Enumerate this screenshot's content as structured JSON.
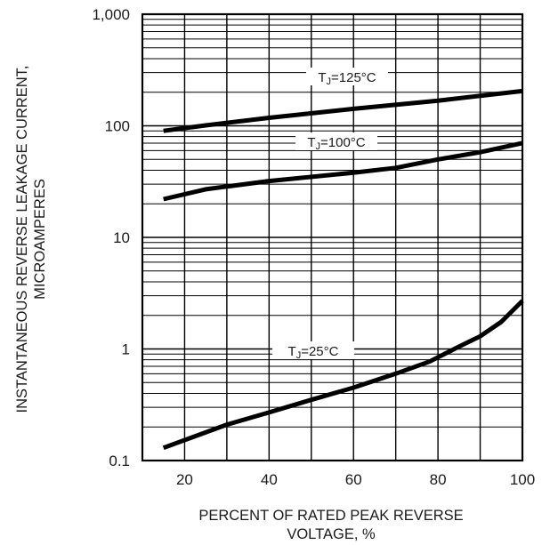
{
  "chart_data": {
    "type": "line",
    "title": "",
    "xlabel": [
      "PERCENT OF RATED PEAK REVERSE",
      "VOLTAGE, %"
    ],
    "ylabel": [
      "INSTANTANEOUS REVERSE LEAKAGE CURRENT,",
      "MICROAMPERES"
    ],
    "x_scale": "linear",
    "y_scale": "log",
    "xlim": [
      10,
      100
    ],
    "ylim": [
      0.1,
      1000
    ],
    "x_ticks": [
      20,
      40,
      60,
      80,
      100
    ],
    "x_tick_labels": [
      "20",
      "40",
      "60",
      "80",
      "100"
    ],
    "y_ticks": [
      0.1,
      1,
      10,
      100,
      1000
    ],
    "y_tick_labels": [
      "0.1",
      "1",
      "10",
      "100",
      "1,000"
    ],
    "grid": true,
    "series": [
      {
        "name": "TJ=125°C",
        "label_parts": [
          "T",
          "J",
          "=125°C"
        ],
        "x": [
          15,
          25,
          40,
          60,
          80,
          100
        ],
        "y": [
          90,
          101,
          118,
          142,
          168,
          205
        ]
      },
      {
        "name": "TJ=100°C",
        "label_parts": [
          "T",
          "J",
          "=100°C"
        ],
        "x": [
          15,
          25,
          40,
          60,
          70,
          80,
          90,
          100
        ],
        "y": [
          22,
          27,
          32,
          38,
          42,
          50,
          58,
          70
        ]
      },
      {
        "name": "TJ=25°C",
        "label_parts": [
          "T",
          "J",
          "=25°C"
        ],
        "x": [
          15,
          30,
          40,
          50,
          60,
          70,
          78,
          85,
          90,
          95,
          100
        ],
        "y": [
          0.13,
          0.21,
          0.27,
          0.35,
          0.45,
          0.6,
          0.77,
          1.05,
          1.3,
          1.75,
          2.7
        ]
      }
    ]
  }
}
